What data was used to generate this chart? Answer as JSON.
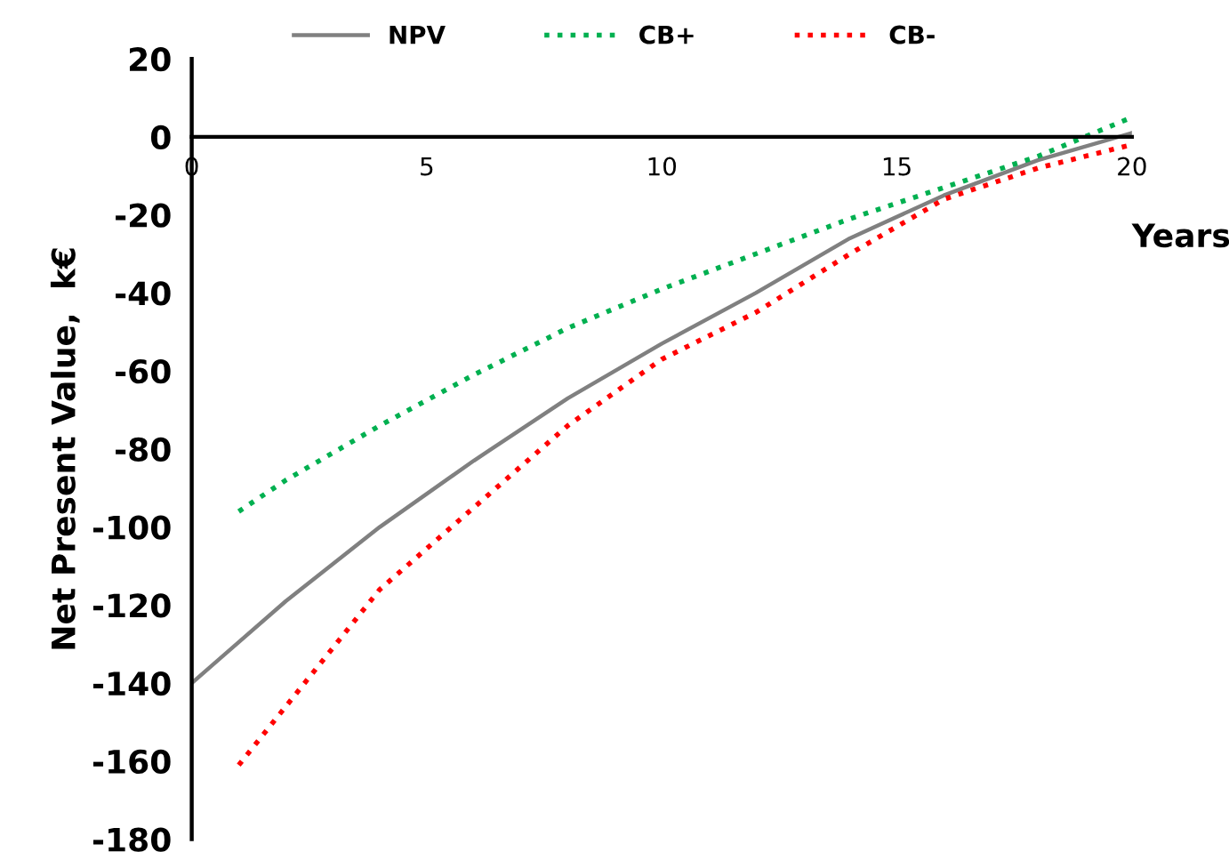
{
  "chart_data": {
    "type": "line",
    "xlabel": "Years",
    "ylabel": "Net Present Value,  k€",
    "xlim": [
      0,
      20
    ],
    "xticks": [
      0,
      5,
      10,
      15,
      20
    ],
    "ylim": [
      -180,
      20
    ],
    "yticks": [
      -180,
      -160,
      -140,
      -120,
      -100,
      -80,
      -60,
      -40,
      -20,
      0,
      20
    ],
    "grid": false,
    "legend": "top",
    "marker": "none",
    "series": [
      {
        "name": "NPV",
        "color": "#808080",
        "line_style": "solid",
        "x": [
          0,
          2,
          4,
          6,
          8,
          10,
          12,
          14,
          16,
          18,
          20
        ],
        "values": [
          -140,
          -119,
          -100,
          -83,
          -67,
          -53,
          -40,
          -26,
          -15,
          -6,
          1
        ]
      },
      {
        "name": "CB+",
        "color": "#00b050",
        "line_style": "dotted",
        "x": [
          1,
          2,
          4,
          6,
          8,
          10,
          12,
          14,
          16,
          18,
          20
        ],
        "values": [
          -96,
          -88,
          -74,
          -61,
          -49,
          -39,
          -30,
          -21,
          -13,
          -5,
          5
        ]
      },
      {
        "name": "CB-",
        "color": "#ff0000",
        "line_style": "dotted",
        "x": [
          1,
          2,
          4,
          6,
          8,
          10,
          12,
          14,
          16,
          18,
          20
        ],
        "values": [
          -161,
          -146,
          -116,
          -95,
          -74,
          -57,
          -45,
          -30,
          -16,
          -8,
          -2
        ]
      }
    ]
  }
}
